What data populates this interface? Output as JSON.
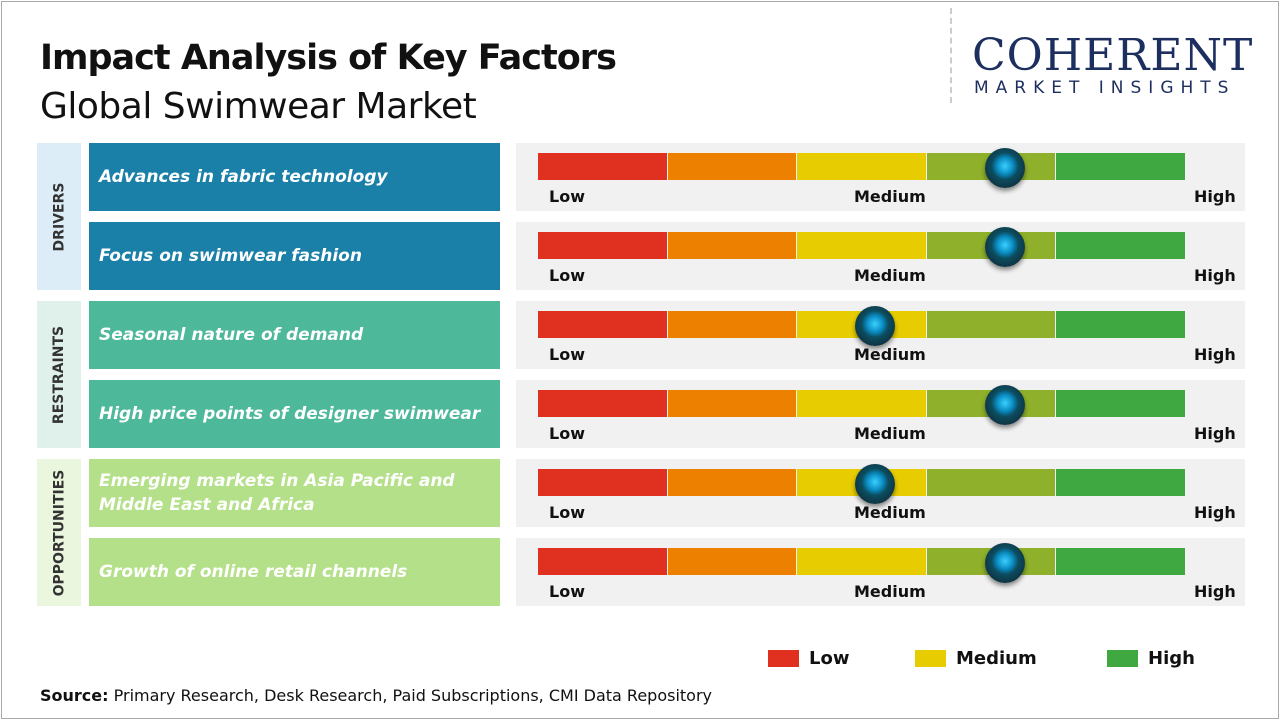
{
  "title": "Impact Analysis of Key Factors",
  "subtitle": "Global Swimwear Market",
  "logo": {
    "line1": "COHERENT",
    "line2": "MARKET INSIGHTS"
  },
  "colors": {
    "low": "#e03020",
    "low_mid": "#ee8000",
    "medium": "#e6cc00",
    "mid_high": "#8fb02a",
    "high": "#40a840",
    "drivers": "#1b80a8",
    "restraints": "#4db89a",
    "opportunities": "#b5e08a",
    "knob": "#1aa8e0"
  },
  "scale": {
    "low": "Low",
    "medium": "Medium",
    "high": "High"
  },
  "categories": [
    {
      "label": "DRIVERS",
      "bg": "#dcedf7"
    },
    {
      "label": "RESTRAINTS",
      "bg": "#dff1ea"
    },
    {
      "label": "OPPORTUNITIES",
      "bg": "#eaf6de"
    }
  ],
  "chart_data": {
    "type": "gauge-table",
    "scale": [
      0,
      1
    ],
    "scale_labels": [
      "Low",
      "Medium",
      "High"
    ],
    "rows": [
      {
        "category": "DRIVERS",
        "factor": "Advances in fabric technology",
        "impact": 0.72
      },
      {
        "category": "DRIVERS",
        "factor": "Focus on swimwear fashion",
        "impact": 0.72
      },
      {
        "category": "RESTRAINTS",
        "factor": "Seasonal nature of demand",
        "impact": 0.52
      },
      {
        "category": "RESTRAINTS",
        "factor": "High price points of designer swimwear",
        "impact": 0.72
      },
      {
        "category": "OPPORTUNITIES",
        "factor": "Emerging markets in Asia Pacific and Middle East and Africa",
        "impact": 0.52
      },
      {
        "category": "OPPORTUNITIES",
        "factor": "Growth of online retail channels",
        "impact": 0.72
      }
    ],
    "legend": [
      {
        "name": "Low",
        "color": "#e03020"
      },
      {
        "name": "Medium",
        "color": "#e6cc00"
      },
      {
        "name": "High",
        "color": "#40a840"
      }
    ],
    "legend_position": "bottom-right"
  },
  "source": {
    "label": "Source:",
    "text": " Primary Research, Desk Research, Paid Subscriptions, CMI Data Repository"
  }
}
